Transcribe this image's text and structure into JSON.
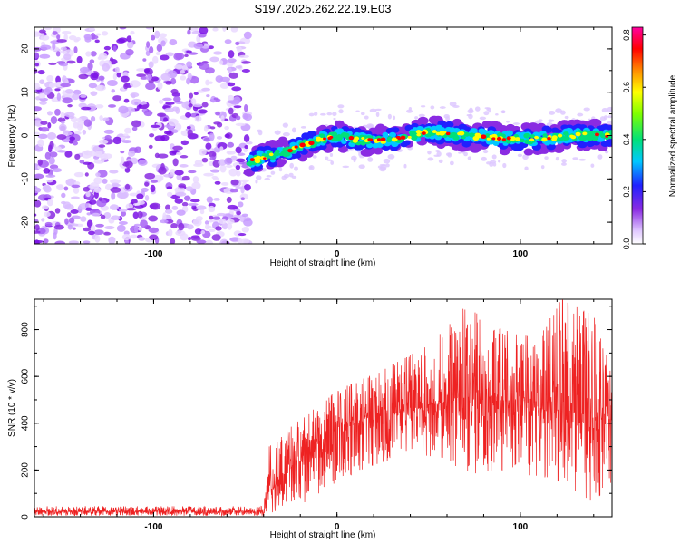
{
  "title": "S197.2025.262.22.19.E03",
  "chart_data": [
    {
      "type": "heatmap",
      "title": "S197.2025.262.22.19.E03",
      "xlabel": "Height of straight line (km)",
      "ylabel": "Frequency (Hz)",
      "xlim": [
        -165,
        150
      ],
      "ylim": [
        -25,
        25
      ],
      "xticks": [
        -100,
        0,
        100
      ],
      "xtick_labels": [
        "-100",
        "0",
        "100"
      ],
      "yticks": [
        -20,
        -10,
        0,
        10,
        20
      ],
      "ytick_labels": [
        "-20",
        "-10",
        "0",
        "10",
        "20"
      ],
      "colorbar": {
        "label": "Normalized spectral amplitude",
        "range": [
          0,
          0.83
        ],
        "ticks": [
          0.0,
          0.2,
          0.4,
          0.6,
          0.8
        ],
        "tick_labels": [
          "0.0",
          "0.2",
          "0.4",
          "0.6",
          "0.8"
        ],
        "colors": [
          "#ffffff",
          "#8a2be2",
          "#2020ff",
          "#00c8ff",
          "#00e07a",
          "#7fff00",
          "#ffff00",
          "#ff8c00",
          "#ff0000",
          "#ff00a0"
        ]
      },
      "noise_region": {
        "x_range": [
          -165,
          -48
        ],
        "y_range": [
          -25,
          25
        ],
        "level": "0.0 - 0.15"
      },
      "signal_track": {
        "x_start": -48,
        "x_end": 150,
        "centre_frequency": [
          {
            "x": -48,
            "y": -6
          },
          {
            "x": -30,
            "y": -4
          },
          {
            "x": -10,
            "y": -1
          },
          {
            "x": 0,
            "y": 0
          },
          {
            "x": 10,
            "y": -1
          },
          {
            "x": 30,
            "y": -1
          },
          {
            "x": 50,
            "y": 1
          },
          {
            "x": 70,
            "y": 0
          },
          {
            "x": 100,
            "y": -1
          },
          {
            "x": 130,
            "y": 0
          },
          {
            "x": 150,
            "y": 0
          }
        ],
        "bandwidth_hz": 5,
        "peak_amplitude": 0.83
      }
    },
    {
      "type": "line",
      "xlabel": "Height of straight line (km)",
      "ylabel": "SNR (10 * v/v)",
      "xlim": [
        -165,
        150
      ],
      "ylim": [
        0,
        930
      ],
      "xticks": [
        -100,
        0,
        100
      ],
      "xtick_labels": [
        "-100",
        "0",
        "100"
      ],
      "yticks": [
        0,
        200,
        400,
        600,
        800
      ],
      "ytick_labels": [
        "0",
        "200",
        "400",
        "600",
        "800"
      ],
      "series": [
        {
          "name": "SNR",
          "color": "#ee2222",
          "envelope": [
            {
              "x": -165,
              "mean": 22,
              "min": 5,
              "max": 45
            },
            {
              "x": -40,
              "mean": 22,
              "min": 5,
              "max": 45
            },
            {
              "x": -37,
              "mean": 120,
              "min": 15,
              "max": 300
            },
            {
              "x": -20,
              "mean": 250,
              "min": 50,
              "max": 420
            },
            {
              "x": 0,
              "mean": 380,
              "min": 150,
              "max": 540
            },
            {
              "x": 20,
              "mean": 430,
              "min": 220,
              "max": 610
            },
            {
              "x": 40,
              "mean": 460,
              "min": 270,
              "max": 690
            },
            {
              "x": 60,
              "mean": 490,
              "min": 250,
              "max": 810
            },
            {
              "x": 70,
              "mean": 510,
              "min": 180,
              "max": 900
            },
            {
              "x": 90,
              "mean": 490,
              "min": 200,
              "max": 800
            },
            {
              "x": 110,
              "mean": 460,
              "min": 170,
              "max": 760
            },
            {
              "x": 122,
              "mean": 460,
              "min": 150,
              "max": 930
            },
            {
              "x": 140,
              "mean": 430,
              "min": 60,
              "max": 860
            },
            {
              "x": 150,
              "mean": 420,
              "min": 150,
              "max": 620
            }
          ]
        }
      ]
    }
  ]
}
